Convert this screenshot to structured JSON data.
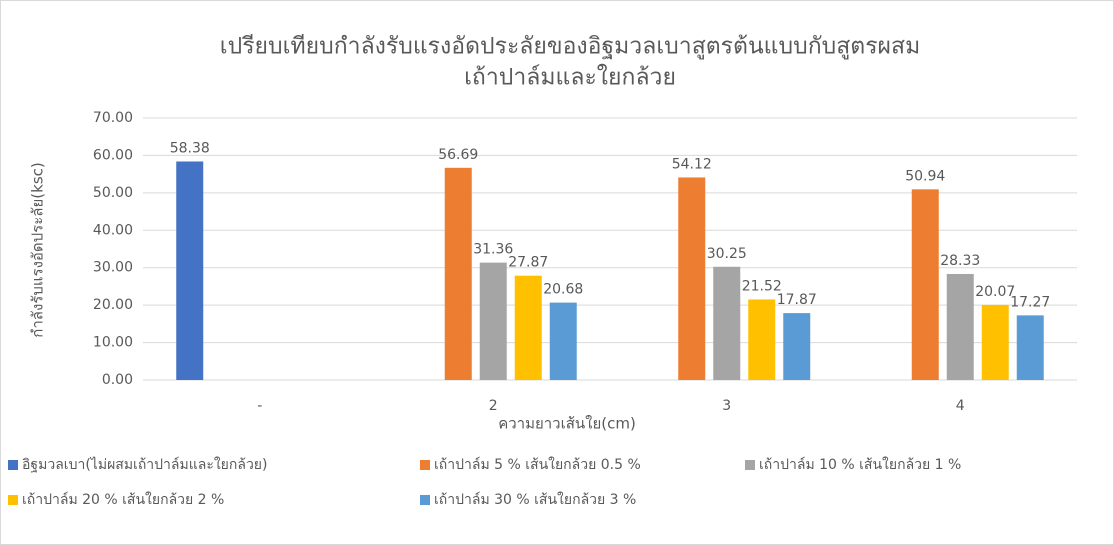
{
  "chart_data": {
    "type": "bar",
    "title": [
      "เปรียบเทียบกำลังรับแรงอัดประลัยของอิฐมวลเบาสูตรต้นแบบกับสูตรผสม",
      "เถ้าปาล์มและใยกล้วย"
    ],
    "x_label": "ความยาวเส้นใย(cm)",
    "y_label": "กำลังรับแรงอัดประลัย(ksc)",
    "categories": [
      "-",
      "2",
      "3",
      "4"
    ],
    "series": [
      {
        "name": "อิฐมวลเบา(ไม่ผสมเถ้าปาล์มและใยกล้วย)",
        "color": "#4472c4",
        "values": [
          58.38,
          null,
          null,
          null
        ]
      },
      {
        "name": "เถ้าปาล์ม 5 % เส้นใยกล้วย 0.5 %",
        "color": "#ed7d31",
        "values": [
          null,
          56.69,
          54.12,
          50.94
        ]
      },
      {
        "name": "เถ้าปาล์ม 10 % เส้นใยกล้วย 1 %",
        "color": "#a5a5a5",
        "values": [
          null,
          31.36,
          30.25,
          28.33
        ]
      },
      {
        "name": "เถ้าปาล์ม 20 % เส้นใยกล้วย 2 %",
        "color": "#ffc000",
        "values": [
          null,
          27.87,
          21.52,
          20.07
        ]
      },
      {
        "name": "เถ้าปาล์ม 30 % เส้นใยกล้วย 3 %",
        "color": "#5b9bd5",
        "values": [
          null,
          20.68,
          17.87,
          17.27
        ]
      }
    ],
    "ylim": [
      0,
      70
    ],
    "yticks": [
      {
        "value": 0,
        "label": "0.00"
      },
      {
        "value": 10,
        "label": "10.00"
      },
      {
        "value": 20,
        "label": "20.00"
      },
      {
        "value": 30,
        "label": "30.00"
      },
      {
        "value": 40,
        "label": "40.00"
      },
      {
        "value": 50,
        "label": "50.00"
      },
      {
        "value": 60,
        "label": "60.00"
      },
      {
        "value": 70,
        "label": "70.00"
      }
    ],
    "grid": true,
    "legend": "bottom"
  }
}
